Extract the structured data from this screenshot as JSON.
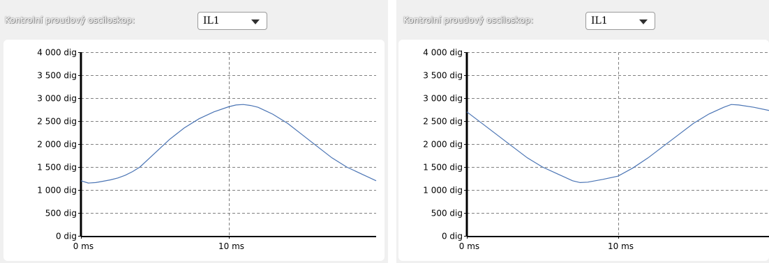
{
  "panels": [
    {
      "label": "Kontrolní proudový osciloskop:",
      "select_value": "IL1"
    },
    {
      "label": "Kontrolní proudový osciloskop:",
      "select_value": "IL1"
    }
  ],
  "chart_data": [
    {
      "type": "line",
      "ylim": [
        0,
        4000
      ],
      "xlim": [
        0,
        20
      ],
      "y_ticks": [
        0,
        500,
        1000,
        1500,
        2000,
        2500,
        3000,
        3500,
        4000
      ],
      "y_tick_labels": [
        "0 dig",
        "500 dig",
        "1 000 dig",
        "1 500 dig",
        "2 000 dig",
        "2 500 dig",
        "3 000 dig",
        "3 500 dig",
        "4 000 dig"
      ],
      "x_ticks": [
        0,
        10
      ],
      "x_tick_labels": [
        "0 ms",
        "10 ms"
      ],
      "grid": true,
      "line_color": "#4a74b4",
      "series": [
        {
          "x": [
            0,
            0.5,
            1,
            1.5,
            2,
            2.5,
            3,
            3.5,
            4,
            5,
            6,
            7,
            8,
            9,
            10,
            10.5,
            11,
            11.5,
            12,
            13,
            14,
            15,
            16,
            17,
            18,
            19,
            20
          ],
          "values": [
            1200,
            1150,
            1160,
            1190,
            1220,
            1260,
            1320,
            1400,
            1500,
            1800,
            2100,
            2350,
            2550,
            2700,
            2810,
            2850,
            2860,
            2840,
            2800,
            2650,
            2450,
            2200,
            1950,
            1700,
            1500,
            1350,
            1200
          ]
        }
      ]
    },
    {
      "type": "line",
      "ylim": [
        0,
        4000
      ],
      "xlim": [
        0,
        20
      ],
      "y_ticks": [
        0,
        500,
        1000,
        1500,
        2000,
        2500,
        3000,
        3500,
        4000
      ],
      "y_tick_labels": [
        "0 dig",
        "500 dig",
        "1 000 dig",
        "1 500 dig",
        "2 000 dig",
        "2 500 dig",
        "3 000 dig",
        "3 500 dig",
        "4 000 dig"
      ],
      "x_ticks": [
        0,
        10
      ],
      "x_tick_labels": [
        "0 ms",
        "10 ms"
      ],
      "grid": true,
      "line_color": "#4a74b4",
      "series": [
        {
          "x": [
            0,
            1,
            2,
            3,
            4,
            5,
            6,
            7,
            7.5,
            8,
            9,
            10,
            11,
            12,
            13,
            14,
            15,
            16,
            17,
            17.5,
            18,
            19,
            20
          ],
          "values": [
            2700,
            2450,
            2200,
            1950,
            1700,
            1500,
            1350,
            1200,
            1160,
            1170,
            1230,
            1300,
            1480,
            1700,
            1950,
            2200,
            2450,
            2650,
            2800,
            2860,
            2850,
            2800,
            2730
          ]
        }
      ]
    }
  ]
}
